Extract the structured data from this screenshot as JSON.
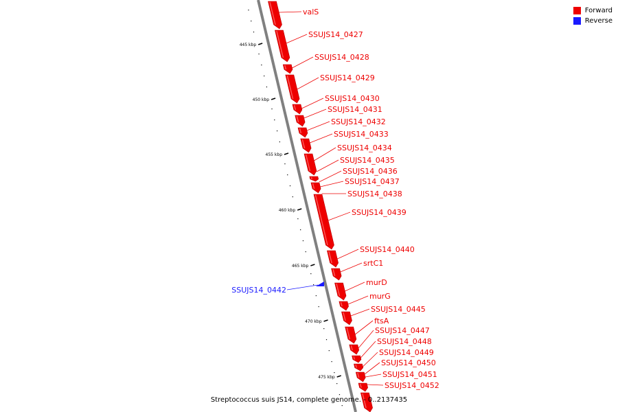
{
  "map": {
    "caption": "Streptococcus suis JS14, complete genome. - 0..2137435",
    "colors": {
      "forward": "#ee0000",
      "reverse": "#1a1aff",
      "backbone": "#808080",
      "tick": "#000000"
    },
    "ticks": [
      "445 kbp",
      "450 kbp",
      "455 kbp",
      "460 kbp",
      "465 kbp",
      "470 kbp",
      "475 kbp"
    ],
    "legend": [
      {
        "label": "Forward",
        "color": "#ee0000"
      },
      {
        "label": "Reverse",
        "color": "#1a1aff"
      }
    ],
    "genes": [
      {
        "name": "valS",
        "strand": "forward"
      },
      {
        "name": "SSUJS14_0427",
        "strand": "forward"
      },
      {
        "name": "SSUJS14_0428",
        "strand": "forward"
      },
      {
        "name": "SSUJS14_0429",
        "strand": "forward"
      },
      {
        "name": "SSUJS14_0430",
        "strand": "forward"
      },
      {
        "name": "SSUJS14_0431",
        "strand": "forward"
      },
      {
        "name": "SSUJS14_0432",
        "strand": "forward"
      },
      {
        "name": "SSUJS14_0433",
        "strand": "forward"
      },
      {
        "name": "SSUJS14_0434",
        "strand": "forward"
      },
      {
        "name": "SSUJS14_0435",
        "strand": "forward"
      },
      {
        "name": "SSUJS14_0436",
        "strand": "forward"
      },
      {
        "name": "SSUJS14_0437",
        "strand": "forward"
      },
      {
        "name": "SSUJS14_0438",
        "strand": "forward"
      },
      {
        "name": "SSUJS14_0439",
        "strand": "forward"
      },
      {
        "name": "SSUJS14_0440",
        "strand": "forward"
      },
      {
        "name": "srtC1",
        "strand": "forward"
      },
      {
        "name": "SSUJS14_0442",
        "strand": "reverse"
      },
      {
        "name": "murD",
        "strand": "forward"
      },
      {
        "name": "murG",
        "strand": "forward"
      },
      {
        "name": "SSUJS14_0445",
        "strand": "forward"
      },
      {
        "name": "ftsA",
        "strand": "forward"
      },
      {
        "name": "SSUJS14_0447",
        "strand": "forward"
      },
      {
        "name": "SSUJS14_0448",
        "strand": "forward"
      },
      {
        "name": "SSUJS14_0449",
        "strand": "forward"
      },
      {
        "name": "SSUJS14_0450",
        "strand": "forward"
      },
      {
        "name": "SSUJS14_0451",
        "strand": "forward"
      },
      {
        "name": "SSUJS14_0452",
        "strand": "forward"
      }
    ]
  }
}
